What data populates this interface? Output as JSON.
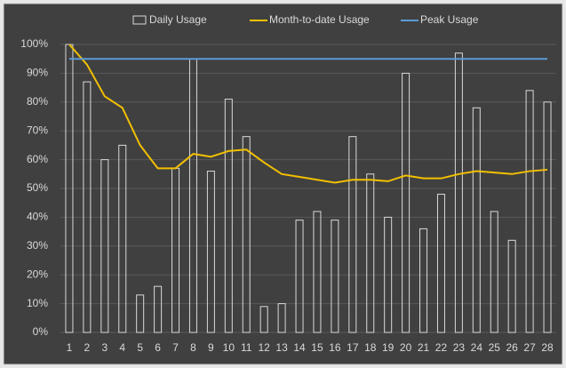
{
  "chart_data": {
    "type": "bar",
    "categories": [
      "1",
      "2",
      "3",
      "4",
      "5",
      "6",
      "7",
      "8",
      "9",
      "10",
      "11",
      "12",
      "13",
      "14",
      "15",
      "16",
      "17",
      "18",
      "19",
      "20",
      "21",
      "22",
      "23",
      "24",
      "25",
      "26",
      "27",
      "28"
    ],
    "series": [
      {
        "name": "Daily Usage",
        "type": "bar",
        "color": "#d9d9d9",
        "values": [
          100,
          87,
          60,
          65,
          13,
          16,
          57,
          95,
          56,
          81,
          68,
          9,
          10,
          39,
          42,
          39,
          68,
          55,
          40,
          90,
          36,
          48,
          97,
          78,
          42,
          32,
          84,
          80
        ]
      },
      {
        "name": "Month-to-date Usage",
        "type": "line",
        "color": "#f2c000",
        "values": [
          100,
          93,
          82,
          78,
          65,
          57,
          57,
          62,
          61,
          63,
          63.5,
          59,
          55,
          54,
          53,
          52,
          53,
          53,
          52.5,
          54.5,
          53.5,
          53.5,
          55,
          56,
          55.5,
          55,
          56,
          56.5
        ]
      },
      {
        "name": "Peak Usage",
        "type": "line",
        "color": "#5b9bd5",
        "values": [
          95,
          95,
          95,
          95,
          95,
          95,
          95,
          95,
          95,
          95,
          95,
          95,
          95,
          95,
          95,
          95,
          95,
          95,
          95,
          95,
          95,
          95,
          95,
          95,
          95,
          95,
          95,
          95
        ]
      }
    ],
    "ylim": [
      0,
      100
    ],
    "yticks": [
      {
        "value": 0,
        "label": "0%"
      },
      {
        "value": 10,
        "label": "10%"
      },
      {
        "value": 20,
        "label": "20%"
      },
      {
        "value": 30,
        "label": "30%"
      },
      {
        "value": 40,
        "label": "40%"
      },
      {
        "value": 50,
        "label": "50%"
      },
      {
        "value": 60,
        "label": "60%"
      },
      {
        "value": 70,
        "label": "70%"
      },
      {
        "value": 80,
        "label": "80%"
      },
      {
        "value": 90,
        "label": "90%"
      },
      {
        "value": 100,
        "label": "100%"
      }
    ],
    "grid": true,
    "legend": "top"
  }
}
